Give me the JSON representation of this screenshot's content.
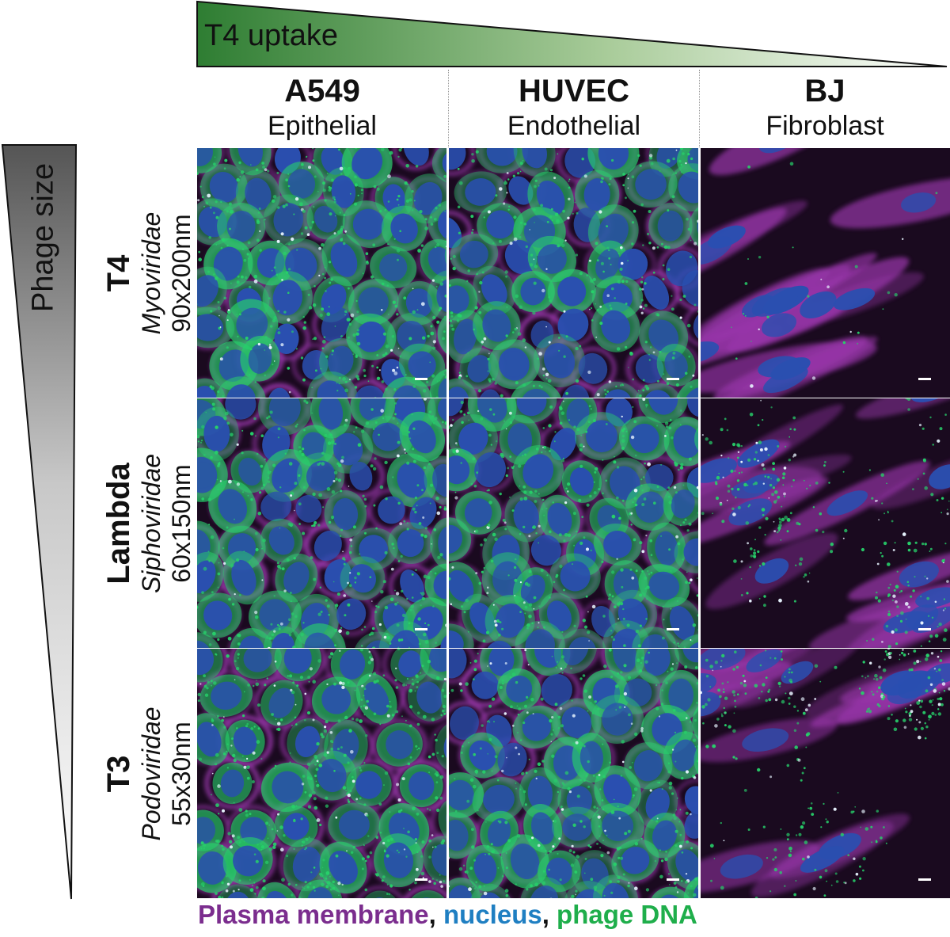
{
  "uptake_wedge": {
    "label": "T4 uptake",
    "color_dark": "#2e7d32",
    "color_light": "#ffffff"
  },
  "size_wedge": {
    "label": "Phage size",
    "color_dark": "#555555",
    "color_light": "#ffffff"
  },
  "columns": [
    {
      "name": "A549",
      "type": "Epithelial"
    },
    {
      "name": "HUVEC",
      "type": "Endothelial"
    },
    {
      "name": "BJ",
      "type": "Fibroblast"
    }
  ],
  "rows": [
    {
      "name": "T4",
      "family": "Myoviridae",
      "size": "90x200nm"
    },
    {
      "name": "Lambda",
      "family": "Siphoviridae",
      "size": "60x150nm"
    },
    {
      "name": "T3",
      "family": "Podoviridae",
      "size": "55x30nm"
    }
  ],
  "legend": {
    "membrane": "Plasma membrane",
    "sep1": ", ",
    "nucleus": "nucleus",
    "sep2": ", ",
    "dna": "phage DNA"
  },
  "colors": {
    "membrane": "#b03fc4",
    "nucleus": "#2a4fb0",
    "phage_dna": "#27d06a",
    "background": "#1a0a1f"
  }
}
